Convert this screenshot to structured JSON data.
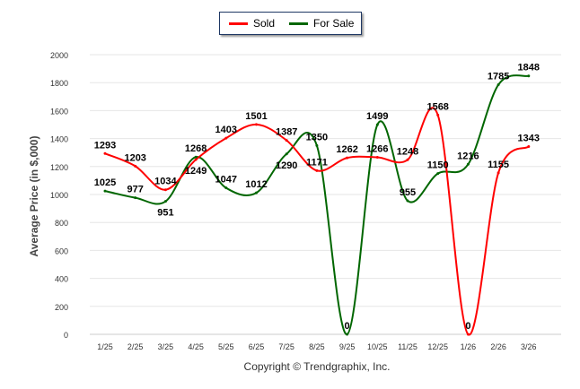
{
  "chart_data": {
    "type": "line",
    "title": "",
    "xlabel": "",
    "ylabel": "Average Price (in $,000)",
    "ylim": [
      0,
      2000
    ],
    "yticks": [
      0,
      200,
      400,
      600,
      800,
      1000,
      1200,
      1400,
      1600,
      1800,
      2000
    ],
    "grid": true,
    "legend_position": "top-center",
    "categories": [
      "1/25",
      "2/25",
      "3/25",
      "4/25",
      "5/25",
      "6/25",
      "7/25",
      "8/25",
      "9/25",
      "10/25",
      "11/25",
      "12/25",
      "1/26",
      "2/26",
      "3/26"
    ],
    "series": [
      {
        "name": "Sold",
        "color": "#ff0000",
        "values": [
          1293,
          1203,
          1034,
          1249,
          1403,
          1501,
          1387,
          1171,
          1262,
          1266,
          1248,
          1568,
          0,
          1155,
          1343
        ]
      },
      {
        "name": "For Sale",
        "color": "#006600",
        "values": [
          1025,
          977,
          951,
          1268,
          1047,
          1012,
          1290,
          1350,
          0,
          1499,
          955,
          1150,
          1216,
          1785,
          1848
        ]
      }
    ]
  },
  "footer": {
    "copyright": "Copyright © Trendgraphix, Inc."
  }
}
